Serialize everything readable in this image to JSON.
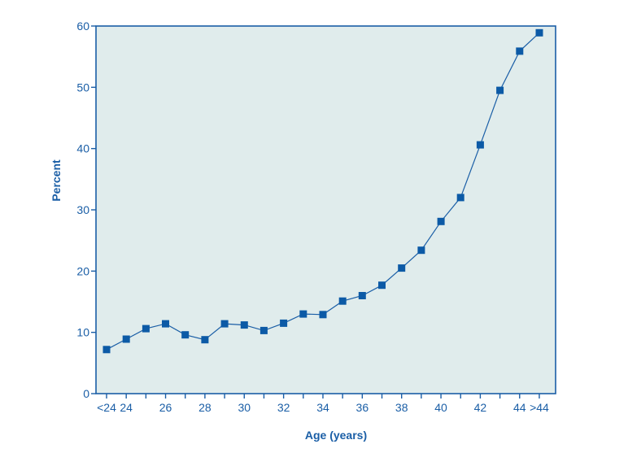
{
  "colors": {
    "primary": "#1a5ea6",
    "plot_background": "#e0ecec",
    "marker": "#0c5aa6",
    "line": "#1a5ea6"
  },
  "chart_data": {
    "type": "line",
    "title": "",
    "xlabel": "Age (years)",
    "ylabel": "Percent",
    "x_categories": [
      "<24",
      "24",
      "25",
      "26",
      "27",
      "28",
      "29",
      "30",
      "31",
      "32",
      "33",
      "34",
      "35",
      "36",
      "37",
      "38",
      "39",
      "40",
      "41",
      "42",
      "43",
      "44",
      ">44"
    ],
    "x_tick_labels": [
      "<24",
      "24",
      "",
      "26",
      "",
      "28",
      "",
      "30",
      "",
      "32",
      "",
      "34",
      "",
      "36",
      "",
      "38",
      "",
      "40",
      "",
      "42",
      "",
      "44",
      ">44"
    ],
    "ylim": [
      0,
      60
    ],
    "y_ticks": [
      0,
      10,
      20,
      30,
      40,
      50,
      60
    ],
    "grid": false,
    "series": [
      {
        "values": [
          7.2,
          8.9,
          10.6,
          11.4,
          9.6,
          8.8,
          11.4,
          11.2,
          10.3,
          11.5,
          13.0,
          12.9,
          15.1,
          16.0,
          17.7,
          20.5,
          23.4,
          28.1,
          32.0,
          40.6,
          49.5,
          55.9,
          58.9
        ]
      }
    ]
  }
}
